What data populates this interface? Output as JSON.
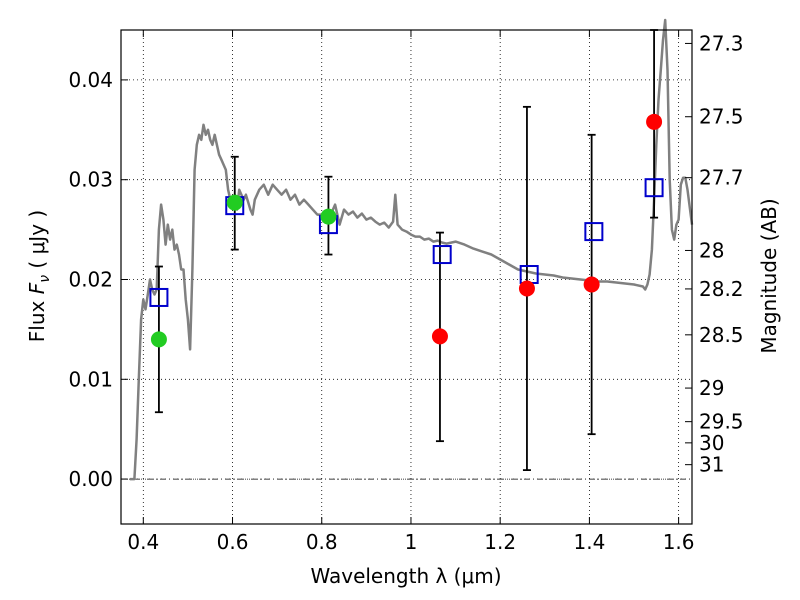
{
  "chart_data": {
    "type": "scatter",
    "xlabel": "Wavelength  λ (μm)",
    "ylabel": "Flux  F_ν  ( μJy )",
    "ylabel_parts": {
      "prefix": "Flux  ",
      "symbol": "F",
      "subscript": "ν",
      "suffix": "  ( μJy )"
    },
    "y2label": "Magnitude (AB)",
    "xlim": [
      0.35,
      1.63
    ],
    "ylim": [
      -0.0045,
      0.045
    ],
    "grid": true,
    "x_ticks": [
      {
        "value": 0.4,
        "label": "0.4"
      },
      {
        "value": 0.6,
        "label": "0.6"
      },
      {
        "value": 0.8,
        "label": "0.8"
      },
      {
        "value": 1.0,
        "label": "1"
      },
      {
        "value": 1.2,
        "label": "1.2"
      },
      {
        "value": 1.4,
        "label": "1.4"
      },
      {
        "value": 1.6,
        "label": "1.6"
      }
    ],
    "y_ticks": [
      {
        "value": 0.0,
        "label": "0.00"
      },
      {
        "value": 0.01,
        "label": "0.01"
      },
      {
        "value": 0.02,
        "label": "0.02"
      },
      {
        "value": 0.03,
        "label": "0.03"
      },
      {
        "value": 0.04,
        "label": "0.04"
      }
    ],
    "magnitude_ticks": [
      {
        "value": 27.3,
        "label": "27.3"
      },
      {
        "value": 27.5,
        "label": "27.5"
      },
      {
        "value": 27.7,
        "label": "27.7"
      },
      {
        "value": 28.0,
        "label": "28"
      },
      {
        "value": 28.2,
        "label": "28.2"
      },
      {
        "value": 28.5,
        "label": "28.5"
      },
      {
        "value": 29.0,
        "label": "29"
      },
      {
        "value": 29.5,
        "label": "29.5"
      },
      {
        "value": 30.0,
        "label": "30"
      },
      {
        "value": 31.0,
        "label": "31"
      }
    ],
    "model_sed": {
      "color": "#808080",
      "points": [
        [
          0.37,
          0.0
        ],
        [
          0.38,
          0.0
        ],
        [
          0.385,
          0.004
        ],
        [
          0.39,
          0.01
        ],
        [
          0.395,
          0.016
        ],
        [
          0.4,
          0.018
        ],
        [
          0.405,
          0.017
        ],
        [
          0.41,
          0.0185
        ],
        [
          0.415,
          0.02
        ],
        [
          0.42,
          0.019
        ],
        [
          0.425,
          0.0185
        ],
        [
          0.43,
          0.019
        ],
        [
          0.435,
          0.025
        ],
        [
          0.44,
          0.0275
        ],
        [
          0.445,
          0.026
        ],
        [
          0.45,
          0.0235
        ],
        [
          0.455,
          0.0255
        ],
        [
          0.46,
          0.024
        ],
        [
          0.465,
          0.025
        ],
        [
          0.47,
          0.023
        ],
        [
          0.475,
          0.0235
        ],
        [
          0.48,
          0.0225
        ],
        [
          0.485,
          0.021
        ],
        [
          0.49,
          0.021
        ],
        [
          0.495,
          0.018
        ],
        [
          0.5,
          0.016
        ],
        [
          0.505,
          0.013
        ],
        [
          0.51,
          0.021
        ],
        [
          0.515,
          0.031
        ],
        [
          0.52,
          0.0335
        ],
        [
          0.525,
          0.0345
        ],
        [
          0.53,
          0.034
        ],
        [
          0.535,
          0.0355
        ],
        [
          0.54,
          0.0345
        ],
        [
          0.545,
          0.035
        ],
        [
          0.55,
          0.034
        ],
        [
          0.555,
          0.0335
        ],
        [
          0.56,
          0.0345
        ],
        [
          0.565,
          0.0335
        ],
        [
          0.57,
          0.0325
        ],
        [
          0.575,
          0.032
        ],
        [
          0.58,
          0.0315
        ],
        [
          0.585,
          0.031
        ],
        [
          0.59,
          0.029
        ],
        [
          0.595,
          0.028
        ],
        [
          0.6,
          0.0275
        ],
        [
          0.605,
          0.0285
        ],
        [
          0.61,
          0.027
        ],
        [
          0.615,
          0.029
        ],
        [
          0.62,
          0.0285
        ],
        [
          0.625,
          0.028
        ],
        [
          0.63,
          0.0285
        ],
        [
          0.64,
          0.027
        ],
        [
          0.645,
          0.0265
        ],
        [
          0.65,
          0.028
        ],
        [
          0.66,
          0.029
        ],
        [
          0.67,
          0.0295
        ],
        [
          0.68,
          0.0285
        ],
        [
          0.69,
          0.0295
        ],
        [
          0.7,
          0.029
        ],
        [
          0.71,
          0.0285
        ],
        [
          0.72,
          0.029
        ],
        [
          0.73,
          0.028
        ],
        [
          0.74,
          0.0285
        ],
        [
          0.75,
          0.0275
        ],
        [
          0.76,
          0.028
        ],
        [
          0.77,
          0.0275
        ],
        [
          0.78,
          0.027
        ],
        [
          0.79,
          0.0265
        ],
        [
          0.8,
          0.0265
        ],
        [
          0.81,
          0.0262
        ],
        [
          0.82,
          0.0258
        ],
        [
          0.825,
          0.027
        ],
        [
          0.83,
          0.0275
        ],
        [
          0.84,
          0.0255
        ],
        [
          0.85,
          0.027
        ],
        [
          0.86,
          0.0265
        ],
        [
          0.87,
          0.0268
        ],
        [
          0.88,
          0.0262
        ],
        [
          0.89,
          0.0266
        ],
        [
          0.9,
          0.026
        ],
        [
          0.91,
          0.0262
        ],
        [
          0.92,
          0.0258
        ],
        [
          0.93,
          0.0255
        ],
        [
          0.94,
          0.0257
        ],
        [
          0.95,
          0.0252
        ],
        [
          0.96,
          0.0258
        ],
        [
          0.965,
          0.0285
        ],
        [
          0.97,
          0.0255
        ],
        [
          0.98,
          0.025
        ],
        [
          0.99,
          0.0248
        ],
        [
          1.0,
          0.0245
        ],
        [
          1.01,
          0.0243
        ],
        [
          1.02,
          0.0243
        ],
        [
          1.03,
          0.024
        ],
        [
          1.04,
          0.0241
        ],
        [
          1.05,
          0.0238
        ],
        [
          1.06,
          0.0239
        ],
        [
          1.07,
          0.0237
        ],
        [
          1.08,
          0.0236
        ],
        [
          1.1,
          0.0238
        ],
        [
          1.12,
          0.0235
        ],
        [
          1.14,
          0.0231
        ],
        [
          1.16,
          0.0228
        ],
        [
          1.18,
          0.0225
        ],
        [
          1.2,
          0.022
        ],
        [
          1.22,
          0.0215
        ],
        [
          1.24,
          0.021
        ],
        [
          1.26,
          0.0208
        ],
        [
          1.28,
          0.0206
        ],
        [
          1.3,
          0.0205
        ],
        [
          1.32,
          0.0204
        ],
        [
          1.34,
          0.0202
        ],
        [
          1.36,
          0.0201
        ],
        [
          1.38,
          0.02
        ],
        [
          1.4,
          0.0199
        ],
        [
          1.42,
          0.0198
        ],
        [
          1.44,
          0.0198
        ],
        [
          1.46,
          0.0197
        ],
        [
          1.48,
          0.0196
        ],
        [
          1.5,
          0.0195
        ],
        [
          1.52,
          0.0193
        ],
        [
          1.525,
          0.019
        ],
        [
          1.53,
          0.0195
        ],
        [
          1.535,
          0.0205
        ],
        [
          1.54,
          0.023
        ],
        [
          1.545,
          0.028
        ],
        [
          1.55,
          0.0335
        ],
        [
          1.555,
          0.038
        ],
        [
          1.56,
          0.041
        ],
        [
          1.565,
          0.044
        ],
        [
          1.57,
          0.046
        ],
        [
          1.575,
          0.041
        ],
        [
          1.58,
          0.03
        ],
        [
          1.585,
          0.025
        ],
        [
          1.59,
          0.024
        ],
        [
          1.595,
          0.0255
        ],
        [
          1.6,
          0.026
        ],
        [
          1.605,
          0.0295
        ],
        [
          1.61,
          0.0302
        ],
        [
          1.615,
          0.0302
        ],
        [
          1.62,
          0.029
        ],
        [
          1.625,
          0.0272
        ],
        [
          1.63,
          0.0255
        ]
      ]
    },
    "model_photometry": {
      "marker": "open-square",
      "color": "#0000cc",
      "points": [
        {
          "x": 0.435,
          "y": 0.0182
        },
        {
          "x": 0.605,
          "y": 0.0274
        },
        {
          "x": 0.815,
          "y": 0.0255
        },
        {
          "x": 1.07,
          "y": 0.0225
        },
        {
          "x": 1.265,
          "y": 0.0205
        },
        {
          "x": 1.41,
          "y": 0.0248
        },
        {
          "x": 1.545,
          "y": 0.0292
        }
      ]
    },
    "observed_detected": {
      "marker": "filled-circle",
      "color": "#22cc22",
      "points": [
        {
          "x": 0.435,
          "y": 0.014,
          "y_low": 0.0067,
          "y_high": 0.0213
        },
        {
          "x": 0.605,
          "y": 0.0277,
          "y_low": 0.023,
          "y_high": 0.0323
        },
        {
          "x": 0.815,
          "y": 0.0263,
          "y_low": 0.0225,
          "y_high": 0.0303
        }
      ]
    },
    "observed_nondetected": {
      "marker": "filled-circle",
      "color": "#ff0000",
      "points": [
        {
          "x": 1.065,
          "y": 0.0143,
          "y_low": 0.0038,
          "y_high": 0.0247
        },
        {
          "x": 1.26,
          "y": 0.0191,
          "y_low": 0.0009,
          "y_high": 0.0373
        },
        {
          "x": 1.405,
          "y": 0.0195,
          "y_low": 0.0045,
          "y_high": 0.0345
        },
        {
          "x": 1.545,
          "y": 0.0358,
          "y_low": 0.0262,
          "y_high": 0.045
        }
      ]
    }
  }
}
